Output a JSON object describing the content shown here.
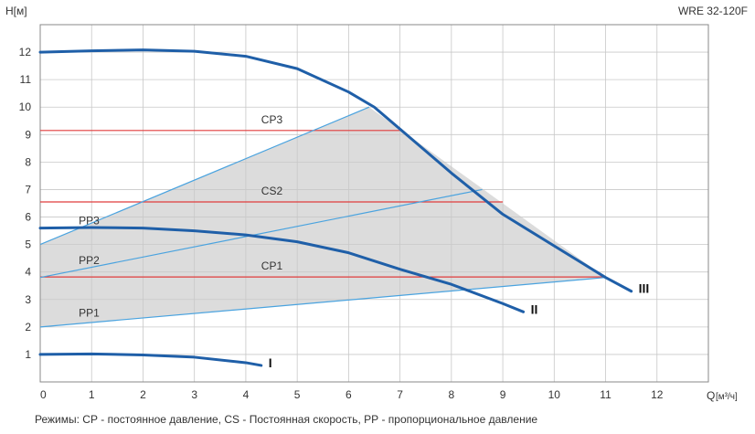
{
  "chart_data": {
    "type": "line",
    "model": "WRE 32-120F",
    "ylabel": "H[м]",
    "xlabel": "Q",
    "xunit": "[м³/ч]",
    "xlim": [
      0,
      13
    ],
    "ylim": [
      0,
      13
    ],
    "xticks": [
      "0",
      "1",
      "2",
      "3",
      "4",
      "5",
      "6",
      "7",
      "8",
      "9",
      "10",
      "11",
      "12"
    ],
    "yticks": [
      "1",
      "2",
      "3",
      "4",
      "5",
      "6",
      "7",
      "8",
      "9",
      "10",
      "11",
      "12"
    ],
    "grid": true,
    "colors": {
      "curve": "#1f5fa8",
      "proportional": "#4aa3df",
      "constant": "#e03c3c",
      "area": "#dcdcdc",
      "grid": "#c8c8c8"
    },
    "shaded_region": [
      [
        0,
        5
      ],
      [
        6.4,
        10
      ],
      [
        11,
        3.8
      ],
      [
        0,
        2
      ]
    ],
    "pump_curves": [
      {
        "label": "III",
        "points": [
          [
            0,
            12
          ],
          [
            1,
            12.05
          ],
          [
            2,
            12.08
          ],
          [
            3,
            12.03
          ],
          [
            4,
            11.85
          ],
          [
            5,
            11.4
          ],
          [
            6,
            10.55
          ],
          [
            6.5,
            10.0
          ],
          [
            7,
            9.2
          ],
          [
            8,
            7.6
          ],
          [
            9,
            6.1
          ],
          [
            10,
            4.95
          ],
          [
            11,
            3.8
          ],
          [
            11.5,
            3.3
          ]
        ]
      },
      {
        "label": "II",
        "points": [
          [
            0,
            5.6
          ],
          [
            1,
            5.62
          ],
          [
            2,
            5.6
          ],
          [
            3,
            5.5
          ],
          [
            4,
            5.35
          ],
          [
            5,
            5.1
          ],
          [
            6,
            4.7
          ],
          [
            7,
            4.1
          ],
          [
            8,
            3.55
          ],
          [
            9,
            2.85
          ],
          [
            9.4,
            2.55
          ]
        ]
      },
      {
        "label": "I",
        "points": [
          [
            0,
            1.0
          ],
          [
            1,
            1.02
          ],
          [
            2,
            0.98
          ],
          [
            3,
            0.9
          ],
          [
            4,
            0.7
          ],
          [
            4.3,
            0.6
          ]
        ]
      }
    ],
    "proportional_lines": [
      {
        "label": "PP3",
        "from": [
          0,
          5
        ],
        "to": [
          6.4,
          10
        ]
      },
      {
        "label": "PP2",
        "from": [
          0,
          3.8
        ],
        "to": [
          8.6,
          7.0
        ]
      },
      {
        "label": "PP1",
        "from": [
          0,
          2.0
        ],
        "to": [
          11,
          3.8
        ]
      }
    ],
    "constant_lines": [
      {
        "label": "CP3",
        "y": 9.15,
        "x_end": 7.0
      },
      {
        "label": "CS2",
        "y": 6.55,
        "x_end": 9.0
      },
      {
        "label": "CP1",
        "y": 3.82,
        "x_end": 11.0
      }
    ],
    "footer": "Режимы: СР - постоянное давление, СS - Постоянная скорость, РР - пропорциональное давление"
  }
}
